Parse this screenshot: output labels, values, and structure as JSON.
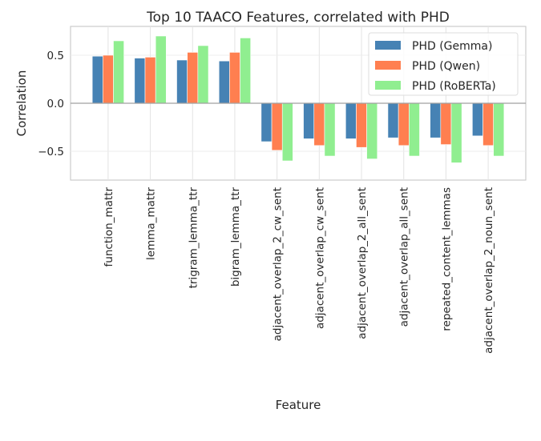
{
  "chart_data": {
    "type": "bar",
    "title": "Top 10 TAACO Features, correlated with PHD",
    "xlabel": "Feature",
    "ylabel": "Correlation",
    "ylim": [
      -0.8,
      0.8
    ],
    "yticks": [
      "0.5",
      "0.0",
      "−0.5"
    ],
    "ytick_values": [
      0.5,
      0.0,
      -0.5
    ],
    "grid": true,
    "legend": "top-right",
    "categories": [
      "function_mattr",
      "lemma_mattr",
      "trigram_lemma_ttr",
      "bigram_lemma_ttr",
      "adjacent_overlap_2_cw_sent",
      "adjacent_overlap_cw_sent",
      "adjacent_overlap_2_all_sent",
      "adjacent_overlap_all_sent",
      "repeated_content_lemmas",
      "adjacent_overlap_2_noun_sent"
    ],
    "series": [
      {
        "name": "PHD (Gemma)",
        "color": "#4682b4",
        "values": [
          0.49,
          0.47,
          0.45,
          0.44,
          -0.4,
          -0.37,
          -0.37,
          -0.36,
          -0.36,
          -0.34
        ]
      },
      {
        "name": "PHD (Qwen)",
        "color": "#ff7f50",
        "values": [
          0.5,
          0.48,
          0.53,
          0.53,
          -0.49,
          -0.44,
          -0.46,
          -0.44,
          -0.43,
          -0.44
        ]
      },
      {
        "name": "PHD (RoBERTa)",
        "color": "#90ee90",
        "values": [
          0.65,
          0.7,
          0.6,
          0.68,
          -0.6,
          -0.55,
          -0.58,
          -0.55,
          -0.62,
          -0.55
        ]
      }
    ]
  }
}
